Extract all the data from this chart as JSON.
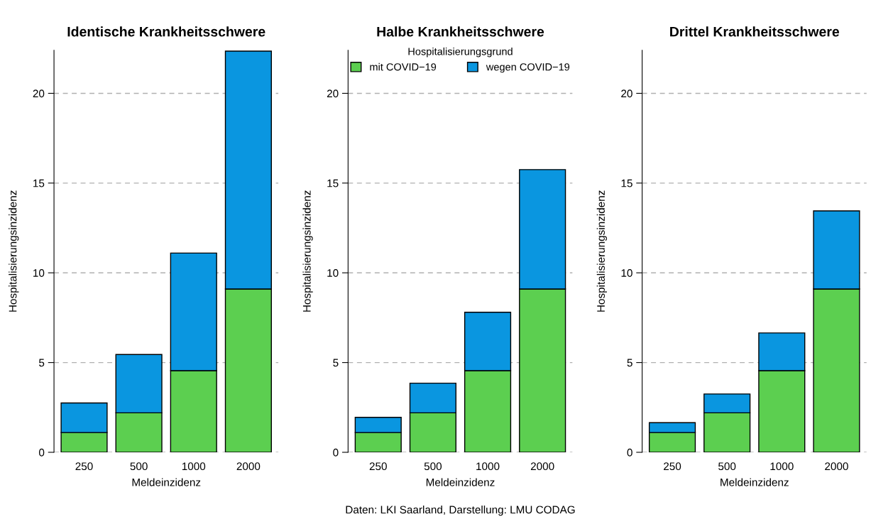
{
  "chart_data": [
    {
      "type": "bar",
      "title": "Identische Krankheitsschwere",
      "xlabel": "Meldeinzidenz",
      "ylabel": "Hospitalisierungsinzidenz",
      "categories": [
        "250",
        "500",
        "1000",
        "2000"
      ],
      "stacked": true,
      "ylim": [
        0,
        22.4
      ],
      "yticks": [
        0,
        5,
        10,
        15,
        20
      ],
      "grid": "y",
      "series": [
        {
          "color": "#5ccf50",
          "values": [
            1.1,
            2.2,
            4.55,
            9.1
          ]
        },
        {
          "color": "#0a96e0",
          "values": [
            1.65,
            3.25,
            6.55,
            13.25
          ]
        }
      ]
    },
    {
      "type": "bar",
      "title": "Halbe Krankheitsschwere",
      "xlabel": "Meldeinzidenz",
      "ylabel": "Hospitalisierungsinzidenz",
      "categories": [
        "250",
        "500",
        "1000",
        "2000"
      ],
      "stacked": true,
      "ylim": [
        0,
        22.4
      ],
      "yticks": [
        0,
        5,
        10,
        15,
        20
      ],
      "grid": "y",
      "legend": "top",
      "legend_title": "Hospitalisierungsgrund",
      "annotations": [
        "Daten: LKI Saarland, Darstellung: LMU CODAG"
      ],
      "series": [
        {
          "name": "mit COVID−19",
          "color": "#5ccf50",
          "values": [
            1.1,
            2.2,
            4.55,
            9.1
          ]
        },
        {
          "name": "wegen COVID−19",
          "color": "#0a96e0",
          "values": [
            0.85,
            1.65,
            3.25,
            6.65
          ]
        }
      ]
    },
    {
      "type": "bar",
      "title": "Drittel Krankheitsschwere",
      "xlabel": "Meldeinzidenz",
      "ylabel": "Hospitalisierungsinzidenz",
      "categories": [
        "250",
        "500",
        "1000",
        "2000"
      ],
      "stacked": true,
      "ylim": [
        0,
        22.4
      ],
      "yticks": [
        0,
        5,
        10,
        15,
        20
      ],
      "grid": "y",
      "series": [
        {
          "color": "#5ccf50",
          "values": [
            1.1,
            2.2,
            4.55,
            9.1
          ]
        },
        {
          "color": "#0a96e0",
          "values": [
            0.55,
            1.05,
            2.1,
            4.35
          ]
        }
      ]
    }
  ]
}
